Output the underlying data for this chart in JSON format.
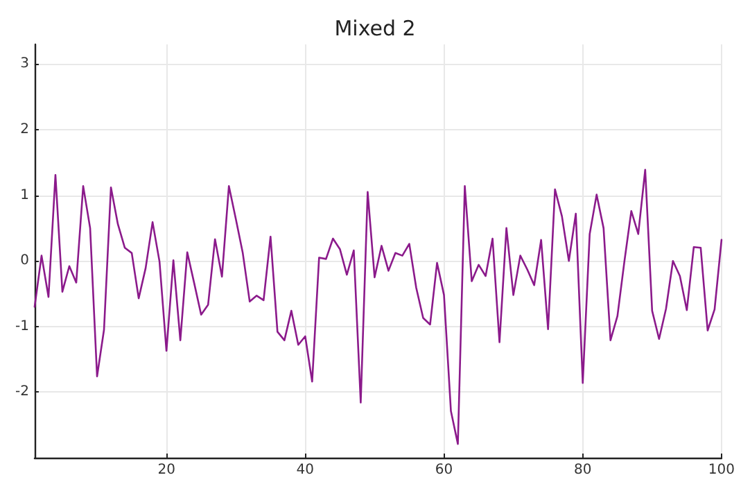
{
  "chart_data": {
    "type": "line",
    "title": "Mixed 2",
    "x": [
      1,
      2,
      3,
      4,
      5,
      6,
      7,
      8,
      9,
      10,
      11,
      12,
      13,
      14,
      15,
      16,
      17,
      18,
      19,
      20,
      21,
      22,
      23,
      24,
      25,
      26,
      27,
      28,
      29,
      30,
      31,
      32,
      33,
      34,
      35,
      36,
      37,
      38,
      39,
      40,
      41,
      42,
      43,
      44,
      45,
      46,
      47,
      48,
      49,
      50,
      51,
      52,
      53,
      54,
      55,
      56,
      57,
      58,
      59,
      60,
      61,
      62,
      63,
      64,
      65,
      66,
      67,
      68,
      69,
      70,
      71,
      72,
      73,
      74,
      75,
      76,
      77,
      78,
      79,
      80,
      81,
      82,
      83,
      84,
      85,
      86,
      87,
      88,
      89,
      90,
      91,
      92,
      93,
      94,
      95,
      96,
      97,
      98,
      99,
      100
    ],
    "series": [
      {
        "color": "#8b1a8b",
        "values": [
          -0.7,
          0.08,
          -0.55,
          1.31,
          -0.47,
          -0.08,
          -0.33,
          1.14,
          0.5,
          -1.76,
          -1.05,
          1.12,
          0.56,
          0.2,
          0.12,
          -0.57,
          -0.11,
          0.59,
          -0.01,
          -1.37,
          0.01,
          -1.21,
          0.13,
          -0.34,
          -0.82,
          -0.67,
          0.33,
          -0.24,
          1.14,
          0.64,
          0.12,
          -0.62,
          -0.53,
          -0.6,
          0.37,
          -1.08,
          -1.21,
          -0.76,
          -1.28,
          -1.15,
          -1.84,
          0.05,
          0.03,
          0.34,
          0.18,
          -0.21,
          0.16,
          -2.16,
          1.05,
          -0.25,
          0.23,
          -0.15,
          0.12,
          0.08,
          0.26,
          -0.41,
          -0.87,
          -0.97,
          -0.03,
          -0.52,
          -2.29,
          -2.79,
          1.14,
          -0.31,
          -0.06,
          -0.23,
          0.34,
          -1.24,
          0.5,
          -0.52,
          0.08,
          -0.13,
          -0.37,
          0.32,
          -1.04,
          1.09,
          0.68,
          0,
          0.72,
          -1.86,
          0.41,
          1.01,
          0.5,
          -1.21,
          -0.84,
          -0.01,
          0.76,
          0.41,
          1.39,
          -0.76,
          -1.19,
          -0.73,
          0,
          -0.23,
          -0.75,
          0.21,
          0.2,
          -1.06,
          -0.74,
          0.32
        ]
      }
    ],
    "xlim": [
      1,
      100
    ],
    "xticks": [
      20,
      40,
      60,
      80,
      100
    ],
    "ylim": [
      -3,
      3.3
    ],
    "yticks": [
      -2,
      -1,
      0,
      1,
      2,
      3
    ],
    "grid": true,
    "marker": "none",
    "line_style": "solid"
  }
}
